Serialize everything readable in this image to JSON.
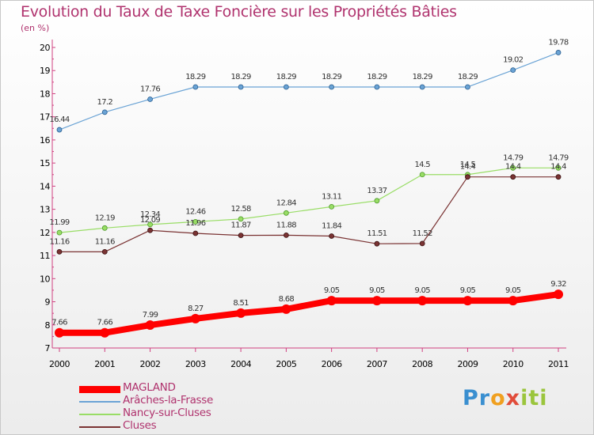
{
  "title": "Evolution du Taux de Taxe Foncière sur les Propriétés Bâties",
  "unit": "(en %)",
  "brand": [
    "Pr",
    "o",
    "x",
    "iti"
  ],
  "chart_data": {
    "type": "line",
    "title": "Evolution du Taux de Taxe Foncière sur les Propriétés Bâties",
    "ylabel": "(en %)",
    "xlabel": "",
    "x": [
      "2000",
      "2001",
      "2002",
      "2003",
      "2004",
      "2005",
      "2006",
      "2007",
      "2008",
      "2009",
      "2010",
      "2011"
    ],
    "ylim": [
      7,
      20
    ],
    "yticks": [
      "7",
      "8",
      "9",
      "10",
      "11",
      "12",
      "13",
      "14",
      "15",
      "16",
      "17",
      "18",
      "19",
      "20"
    ],
    "grid": false,
    "legend_position": "bottom-left",
    "series": [
      {
        "name": "MAGLAND",
        "color": "#ff0000",
        "values": [
          7.66,
          7.66,
          7.99,
          8.27,
          8.51,
          8.68,
          9.05,
          9.05,
          9.05,
          9.05,
          9.05,
          9.32
        ],
        "labels": [
          "7.66",
          "7.66",
          "7.99",
          "8.27",
          "8.51",
          "8.68",
          "9.05",
          "9.05",
          "9.05",
          "9.05",
          "9.05",
          "9.32"
        ]
      },
      {
        "name": "Arâches-la-Frasse",
        "color": "#6aa3d5",
        "values": [
          16.44,
          17.2,
          17.76,
          18.29,
          18.29,
          18.29,
          18.29,
          18.29,
          18.29,
          18.29,
          19.02,
          19.78
        ],
        "labels": [
          "16.44",
          "17.2",
          "17.76",
          "18.29",
          "18.29",
          "18.29",
          "18.29",
          "18.29",
          "18.29",
          "18.29",
          "19.02",
          "19.78"
        ]
      },
      {
        "name": "Nancy-sur-Cluses",
        "color": "#99dd66",
        "values": [
          11.99,
          12.19,
          12.34,
          12.46,
          12.58,
          12.84,
          13.11,
          13.37,
          14.5,
          14.5,
          14.79,
          14.79
        ],
        "labels": [
          "11.99",
          "12.19",
          "12.34",
          "12.46",
          "12.58",
          "12.84",
          "13.11",
          "13.37",
          "14.5",
          "14.5",
          "14.79",
          "14.79"
        ]
      },
      {
        "name": "Cluses",
        "color": "#7a3333",
        "values": [
          11.16,
          11.16,
          12.09,
          11.96,
          11.87,
          11.88,
          11.84,
          11.51,
          11.52,
          14.4,
          14.4,
          14.4
        ],
        "labels": [
          "11.16",
          "11.16",
          "12.09",
          "11.96",
          "11.87",
          "11.88",
          "11.84",
          "11.51",
          "11.52",
          "14.4",
          "14.4",
          "14.4"
        ]
      }
    ]
  }
}
